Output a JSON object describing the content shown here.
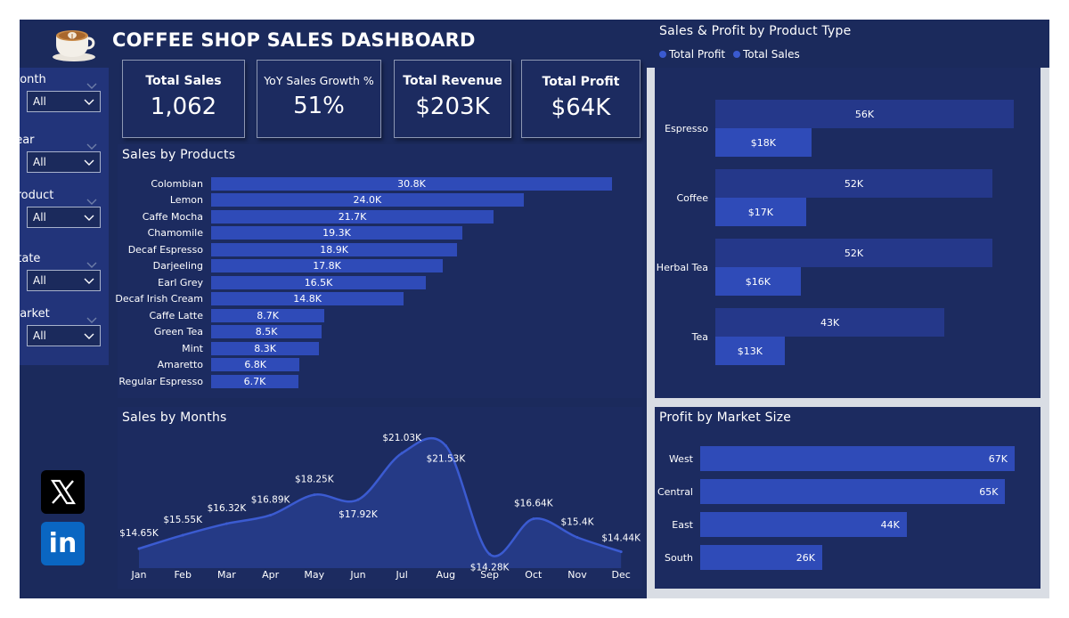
{
  "header": {
    "title": "COFFEE SHOP SALES DASHBOARD",
    "logo_icon": "coffee-cup-icon"
  },
  "filters": [
    {
      "label": "Month",
      "value": "All"
    },
    {
      "label": "Year",
      "value": "All"
    },
    {
      "label": "Product",
      "value": "All"
    },
    {
      "label": "State",
      "value": "All"
    },
    {
      "label": "Market",
      "value": "All"
    }
  ],
  "kpis": [
    {
      "label": "Total Sales",
      "value": "1,062"
    },
    {
      "label": "YoY Sales Growth %",
      "value": "51%"
    },
    {
      "label": "Total Revenue",
      "value": "$203K"
    },
    {
      "label": "Total Profit",
      "value": "$64K"
    }
  ],
  "social": {
    "icons": [
      "x-icon",
      "linkedin-icon"
    ],
    "linkedin_text": "in"
  },
  "colors": {
    "background": "#1b2a5c",
    "panel": "#1c2b60",
    "bar": "#2f4bb8",
    "bar_dark": "#25388a",
    "line": "#3b5bd1"
  },
  "chart_data": [
    {
      "id": "sales_by_products",
      "type": "bar",
      "orientation": "horizontal",
      "title": "Sales by Products",
      "categories": [
        "Colombian",
        "Lemon",
        "Caffe Mocha",
        "Chamomile",
        "Decaf Espresso",
        "Darjeeling",
        "Earl Grey",
        "Decaf Irish Cream",
        "Caffe Latte",
        "Green Tea",
        "Mint",
        "Amaretto",
        "Regular Espresso"
      ],
      "values": [
        30.8,
        24.0,
        21.7,
        19.3,
        18.9,
        17.8,
        16.5,
        14.8,
        8.7,
        8.5,
        8.3,
        6.8,
        6.7
      ],
      "labels": [
        "30.8K",
        "24.0K",
        "21.7K",
        "19.3K",
        "18.9K",
        "17.8K",
        "16.5K",
        "14.8K",
        "8.7K",
        "8.5K",
        "8.3K",
        "6.8K",
        "6.7K"
      ],
      "xlim": [
        0,
        31
      ]
    },
    {
      "id": "sales_profit_by_type",
      "type": "bar",
      "orientation": "horizontal",
      "title": "Sales & Profit by Product Type",
      "legend": [
        "Total Profit",
        "Total Sales"
      ],
      "legend_position": "top-left",
      "categories": [
        "Espresso",
        "Coffee",
        "Herbal Tea",
        "Tea"
      ],
      "series": [
        {
          "name": "Total Sales",
          "values": [
            56,
            52,
            52,
            43
          ],
          "labels": [
            "56K",
            "52K",
            "52K",
            "43K"
          ]
        },
        {
          "name": "Total Profit",
          "values": [
            18,
            17,
            16,
            13
          ],
          "labels": [
            "$18K",
            "$17K",
            "$16K",
            "$13K"
          ]
        }
      ],
      "xlim": [
        0,
        56
      ]
    },
    {
      "id": "sales_by_months",
      "type": "area",
      "title": "Sales by Months",
      "categories": [
        "Jan",
        "Feb",
        "Mar",
        "Apr",
        "May",
        "Jun",
        "Jul",
        "Aug",
        "Sep",
        "Oct",
        "Nov",
        "Dec"
      ],
      "values": [
        14.65,
        15.55,
        16.32,
        16.89,
        18.25,
        17.92,
        21.03,
        21.53,
        14.28,
        16.64,
        15.4,
        14.44
      ],
      "labels": [
        "$14.65K",
        "$15.55K",
        "$16.32K",
        "$16.89K",
        "$18.25K",
        "$17.92K",
        "$21.03K",
        "$21.53K",
        "$14.28K",
        "$16.64K",
        "$15.4K",
        "$14.44K"
      ],
      "ylim": [
        14.0,
        21.8
      ]
    },
    {
      "id": "profit_by_market",
      "type": "bar",
      "orientation": "horizontal",
      "title": "Profit by Market Size",
      "categories": [
        "West",
        "Central",
        "East",
        "South"
      ],
      "values": [
        67,
        65,
        44,
        26
      ],
      "labels": [
        "67K",
        "65K",
        "44K",
        "26K"
      ],
      "xlim": [
        0,
        67
      ]
    }
  ]
}
